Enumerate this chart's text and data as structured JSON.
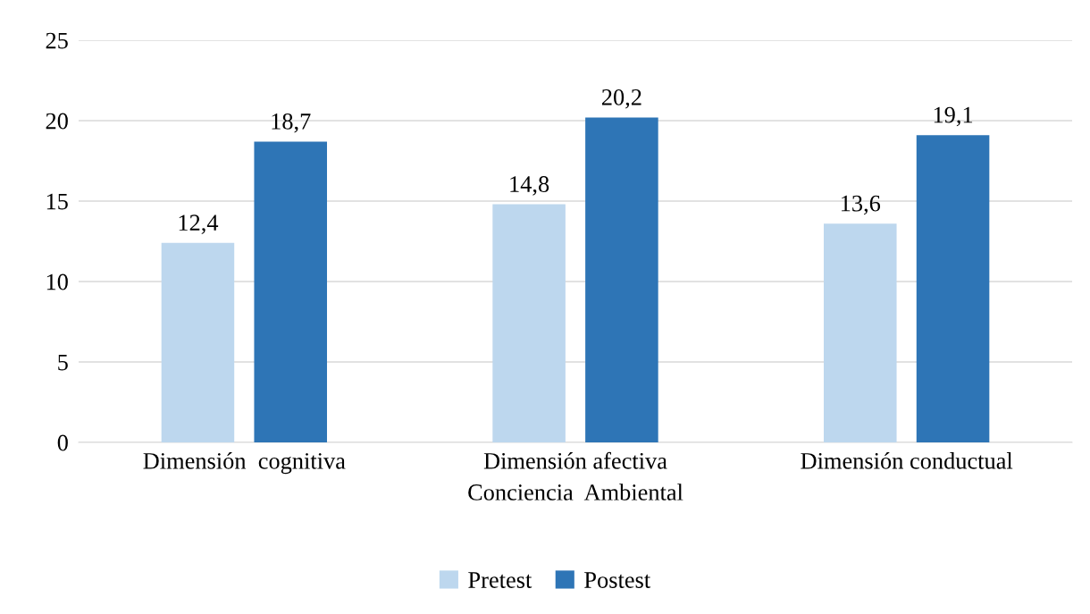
{
  "chart_data": {
    "type": "bar",
    "categories": [
      "Dimensión  cognitiva",
      "Dimensión afectiva",
      "Dimensión conductual"
    ],
    "xlabel": "Conciencia  Ambiental",
    "series": [
      {
        "name": "Pretest",
        "color": "#bdd7ee",
        "values": [
          12.4,
          14.8,
          13.6
        ],
        "value_labels": [
          "12,4",
          "14,8",
          "13,6"
        ]
      },
      {
        "name": "Postest",
        "color": "#2e75b6",
        "values": [
          18.7,
          20.2,
          19.1
        ],
        "value_labels": [
          "18,7",
          "20,2",
          "19,1"
        ]
      }
    ],
    "ylim": [
      0,
      25
    ],
    "yticks": [
      0,
      5,
      10,
      15,
      20,
      25
    ],
    "grid": "y",
    "legend": "bottom"
  }
}
